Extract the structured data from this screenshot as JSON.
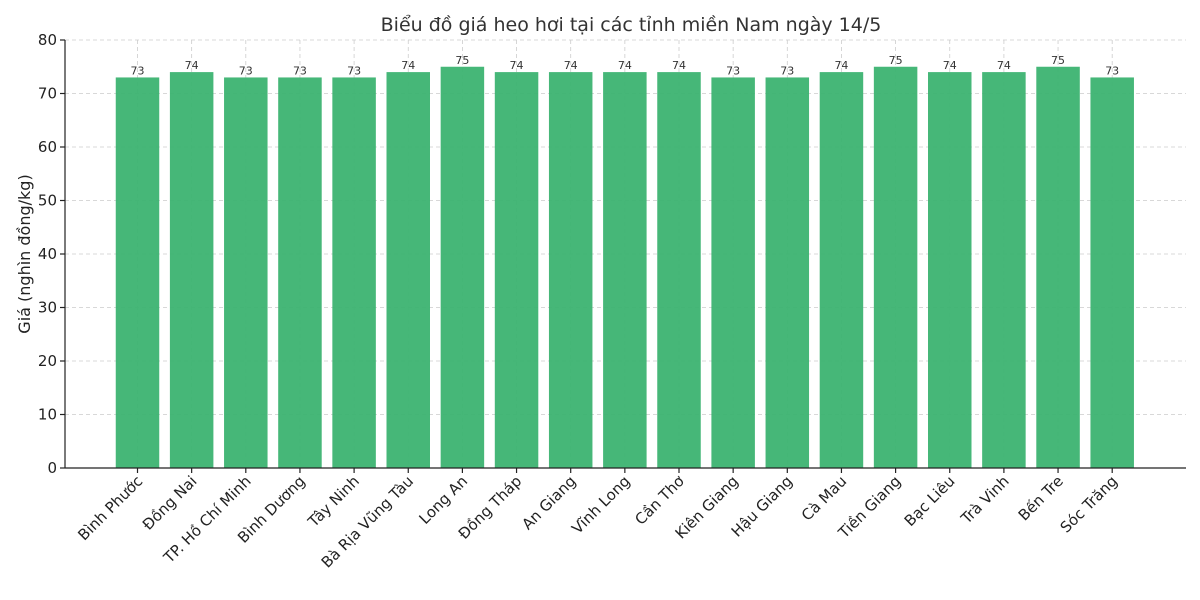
{
  "chart_data": {
    "type": "bar",
    "title": "Biểu đồ giá heo hơi tại các tỉnh miền Nam ngày 14/5",
    "xlabel": "",
    "ylabel": "Giá (nghìn đồng/kg)",
    "ylim": [
      0,
      80
    ],
    "yticks": [
      0,
      10,
      20,
      30,
      40,
      50,
      60,
      70,
      80
    ],
    "grid": true,
    "bar_color": "#3cb371",
    "categories": [
      "Bình Phước",
      "Đồng Nai",
      "TP. Hồ Chí Minh",
      "Bình Dương",
      "Tây Ninh",
      "Bà Rịa  Vũng Tàu",
      "Long An",
      "Đồng Tháp",
      "An Giang",
      "Vĩnh Long",
      "Cần Thơ",
      "Kiên Giang",
      "Hậu Giang",
      "Cà Mau",
      "Tiền Giang",
      "Bạc Liêu",
      "Trà Vinh",
      "Bến Tre",
      "Sóc Trăng"
    ],
    "values": [
      73,
      74,
      73,
      73,
      73,
      74,
      75,
      74,
      74,
      74,
      74,
      73,
      73,
      74,
      75,
      74,
      74,
      75,
      73
    ]
  }
}
